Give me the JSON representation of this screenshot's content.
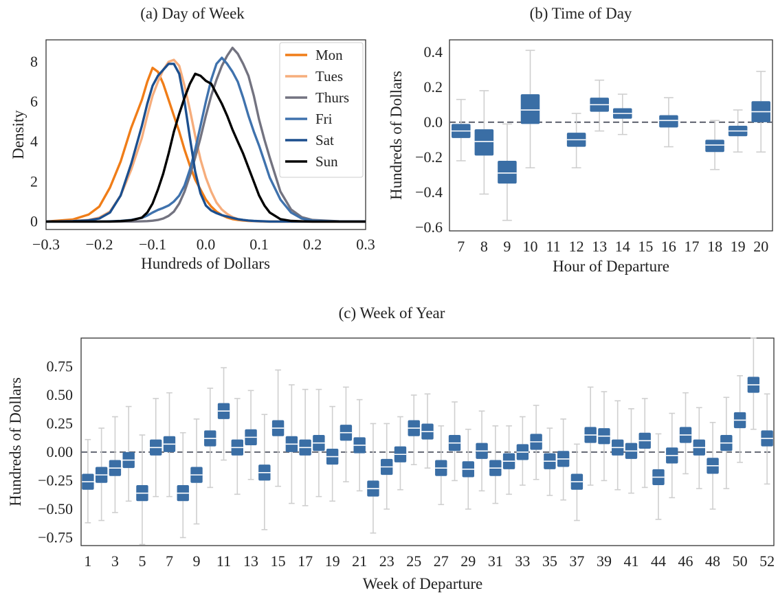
{
  "chart_data": [
    {
      "type": "line",
      "panel": "a",
      "title": "(a) Day of Week",
      "xlabel": "Hundreds of Dollars",
      "ylabel": "Density",
      "xlim": [
        -0.3,
        0.3
      ],
      "ylim": [
        -0.4,
        9.1
      ],
      "xticks": [
        "−0.3",
        "−0.2",
        "−0.1",
        "0.0",
        "0.1",
        "0.2",
        "0.3"
      ],
      "yticks": [
        "0",
        "2",
        "4",
        "6",
        "8"
      ],
      "grid": false,
      "legend": "top-right",
      "x": [
        -0.3,
        -0.25,
        -0.22,
        -0.2,
        -0.18,
        -0.16,
        -0.14,
        -0.12,
        -0.11,
        -0.1,
        -0.09,
        -0.08,
        -0.07,
        -0.06,
        -0.05,
        -0.04,
        -0.03,
        -0.02,
        -0.01,
        0.0,
        0.01,
        0.02,
        0.03,
        0.04,
        0.05,
        0.06,
        0.07,
        0.08,
        0.09,
        0.1,
        0.11,
        0.12,
        0.14,
        0.16,
        0.18,
        0.2,
        0.25,
        0.3
      ],
      "series": [
        {
          "name": "Mon",
          "color": "#f07d18",
          "values": [
            0.0,
            0.1,
            0.35,
            0.75,
            1.7,
            3.0,
            4.7,
            6.1,
            7.0,
            7.7,
            7.5,
            6.9,
            6.1,
            5.3,
            4.5,
            3.6,
            2.8,
            2.1,
            1.6,
            1.1,
            0.75,
            0.5,
            0.32,
            0.2,
            0.12,
            0.08,
            0.05,
            0.03,
            0.02,
            0.01,
            0.0,
            0.0,
            0.0,
            0.0,
            0.0,
            0.0,
            0.0,
            0.0
          ]
        },
        {
          "name": "Tues",
          "color": "#f6ad7c",
          "values": [
            0.0,
            0.03,
            0.08,
            0.2,
            0.5,
            1.3,
            2.6,
            4.2,
            5.3,
            6.3,
            7.0,
            7.6,
            8.0,
            8.1,
            7.8,
            6.8,
            5.6,
            4.3,
            3.1,
            2.2,
            1.5,
            0.95,
            0.6,
            0.38,
            0.22,
            0.12,
            0.07,
            0.04,
            0.02,
            0.01,
            0.0,
            0.0,
            0.0,
            0.0,
            0.0,
            0.0,
            0.0,
            0.0
          ]
        },
        {
          "name": "Thurs",
          "color": "#737380",
          "values": [
            0.0,
            0.0,
            0.0,
            0.0,
            0.0,
            0.0,
            0.0,
            0.01,
            0.02,
            0.04,
            0.08,
            0.15,
            0.28,
            0.5,
            0.9,
            1.5,
            2.3,
            3.2,
            4.2,
            5.3,
            6.3,
            7.1,
            7.8,
            8.3,
            8.7,
            8.4,
            7.9,
            7.3,
            6.3,
            5.1,
            4.1,
            3.2,
            1.5,
            0.6,
            0.22,
            0.08,
            0.01,
            0.0
          ]
        },
        {
          "name": "Fri",
          "color": "#3f72ad",
          "values": [
            0.0,
            0.0,
            0.0,
            0.0,
            0.01,
            0.03,
            0.08,
            0.18,
            0.3,
            0.45,
            0.58,
            0.68,
            0.8,
            1.0,
            1.3,
            1.8,
            2.6,
            3.6,
            4.8,
            6.0,
            7.1,
            7.9,
            8.2,
            7.9,
            7.5,
            7.0,
            6.2,
            5.3,
            4.5,
            3.8,
            3.0,
            2.2,
            1.1,
            0.45,
            0.15,
            0.05,
            0.0,
            0.0
          ]
        },
        {
          "name": "Sat",
          "color": "#1c4f8e",
          "values": [
            0.0,
            0.02,
            0.06,
            0.15,
            0.45,
            1.3,
            2.9,
            4.8,
            5.9,
            6.8,
            7.3,
            7.6,
            7.9,
            7.9,
            7.4,
            6.0,
            4.2,
            2.5,
            1.4,
            0.8,
            0.55,
            0.42,
            0.32,
            0.25,
            0.18,
            0.12,
            0.08,
            0.05,
            0.03,
            0.02,
            0.01,
            0.0,
            0.0,
            0.0,
            0.0,
            0.0,
            0.0,
            0.0
          ]
        },
        {
          "name": "Sun",
          "color": "#000000",
          "values": [
            0.0,
            0.0,
            0.0,
            0.0,
            0.0,
            0.02,
            0.06,
            0.2,
            0.45,
            0.9,
            1.6,
            2.4,
            3.4,
            4.5,
            5.4,
            6.2,
            6.9,
            7.4,
            7.3,
            7.05,
            6.9,
            6.4,
            5.9,
            5.3,
            4.6,
            4.0,
            3.4,
            2.7,
            2.0,
            1.3,
            0.8,
            0.45,
            0.12,
            0.03,
            0.01,
            0.0,
            0.0,
            0.0
          ]
        }
      ]
    },
    {
      "type": "box",
      "panel": "b",
      "title": "(b) Time of Day",
      "xlabel": "Hour of Departure",
      "ylabel": "Hundreds of Dollars",
      "ylim": [
        -0.62,
        0.47
      ],
      "yticks": [
        "0.4",
        "0.2",
        "0.0",
        "−0.2",
        "−0.4",
        "−0.6"
      ],
      "ytick_values": [
        0.4,
        0.2,
        0.0,
        -0.2,
        -0.4,
        -0.6
      ],
      "reference_line": 0.0,
      "color": "#3a6ea5",
      "categories": [
        "7",
        "8",
        "9",
        "10",
        "11",
        "12",
        "13",
        "14",
        "15",
        "16",
        "17",
        "18",
        "19",
        "20"
      ],
      "boxes": [
        {
          "cat": "7",
          "lo": -0.22,
          "q1": -0.09,
          "med": -0.05,
          "q3": -0.01,
          "hi": 0.13
        },
        {
          "cat": "8",
          "lo": -0.41,
          "q1": -0.19,
          "med": -0.11,
          "q3": -0.04,
          "hi": 0.18
        },
        {
          "cat": "9",
          "lo": -0.56,
          "q1": -0.35,
          "med": -0.29,
          "q3": -0.22,
          "hi": -0.01
        },
        {
          "cat": "10",
          "lo": -0.26,
          "q1": -0.01,
          "med": 0.07,
          "q3": 0.16,
          "hi": 0.41
        },
        {
          "cat": "12",
          "lo": -0.26,
          "q1": -0.14,
          "med": -0.1,
          "q3": -0.06,
          "hi": 0.05
        },
        {
          "cat": "13",
          "lo": -0.05,
          "q1": 0.06,
          "med": 0.1,
          "q3": 0.14,
          "hi": 0.24
        },
        {
          "cat": "14",
          "lo": -0.07,
          "q1": 0.02,
          "med": 0.05,
          "q3": 0.08,
          "hi": 0.16
        },
        {
          "cat": "16",
          "lo": -0.14,
          "q1": -0.03,
          "med": 0.01,
          "q3": 0.04,
          "hi": 0.14
        },
        {
          "cat": "18",
          "lo": -0.27,
          "q1": -0.17,
          "med": -0.13,
          "q3": -0.1,
          "hi": 0.01
        },
        {
          "cat": "19",
          "lo": -0.17,
          "q1": -0.08,
          "med": -0.05,
          "q3": -0.02,
          "hi": 0.07
        },
        {
          "cat": "20",
          "lo": -0.17,
          "q1": 0.0,
          "med": 0.06,
          "q3": 0.12,
          "hi": 0.29
        }
      ]
    },
    {
      "type": "box",
      "panel": "c",
      "title": "(c) Week of Year",
      "xlabel": "Week of Departure",
      "ylabel": "Hundreds of Dollars",
      "ylim": [
        -0.82,
        1.0
      ],
      "yticks": [
        "0.75",
        "0.50",
        "0.25",
        "0.00",
        "−0.25",
        "−0.50",
        "−0.75"
      ],
      "ytick_values": [
        0.75,
        0.5,
        0.25,
        0.0,
        -0.25,
        -0.5,
        -0.75
      ],
      "reference_line": 0.0,
      "color": "#3a6ea5",
      "categories": [
        "1",
        "2",
        "3",
        "4",
        "5",
        "6",
        "7",
        "8",
        "9",
        "10",
        "11",
        "12",
        "13",
        "14",
        "15",
        "16",
        "17",
        "18",
        "19",
        "20",
        "21",
        "22",
        "23",
        "24",
        "25",
        "26",
        "27",
        "28",
        "29",
        "30",
        "31",
        "32",
        "33",
        "34",
        "35",
        "36",
        "37",
        "38",
        "39",
        "40",
        "41",
        "42",
        "44",
        "45",
        "46",
        "47",
        "48",
        "49",
        "50",
        "51",
        "52"
      ],
      "tick_labels": [
        "1",
        "3",
        "5",
        "7",
        "9",
        "11",
        "13",
        "15",
        "17",
        "19",
        "21",
        "23",
        "25",
        "27",
        "29",
        "31",
        "33",
        "35",
        "37",
        "39",
        "41",
        "44",
        "46",
        "48",
        "50",
        "52"
      ],
      "medians": [
        -0.26,
        -0.2,
        -0.14,
        -0.07,
        -0.36,
        0.04,
        0.07,
        -0.36,
        -0.2,
        0.12,
        0.36,
        0.04,
        0.13,
        -0.18,
        0.21,
        0.07,
        0.04,
        0.08,
        -0.04,
        0.17,
        0.06,
        -0.32,
        -0.13,
        -0.02,
        0.21,
        0.18,
        -0.14,
        0.08,
        -0.15,
        0.01,
        -0.14,
        -0.08,
        0.0,
        0.09,
        -0.08,
        -0.06,
        -0.26,
        0.15,
        0.14,
        0.04,
        0.01,
        0.1,
        -0.22,
        -0.03,
        0.15,
        0.04,
        -0.12,
        0.08,
        0.28,
        0.59,
        0.12
      ],
      "iqr_half": 0.07,
      "whisker_low": [
        0.29,
        0.33,
        0.32,
        0.29,
        0.38,
        0.36,
        0.39,
        0.32,
        0.36,
        0.36,
        0.36,
        0.34,
        0.3,
        0.43,
        0.44,
        0.45,
        0.44,
        0.4,
        0.32,
        0.36,
        0.33,
        0.32,
        0.3,
        0.24,
        0.25,
        0.25,
        0.25,
        0.26,
        0.28,
        0.28,
        0.24,
        0.22,
        0.22,
        0.26,
        0.23,
        0.29,
        0.27,
        0.37,
        0.32,
        0.3,
        0.3,
        0.34,
        0.3,
        0.3,
        0.27,
        0.29,
        0.31,
        0.33,
        0.3,
        0.32,
        0.33
      ],
      "whisker_high": [
        0.3,
        0.34,
        0.38,
        0.4,
        0.44,
        0.36,
        0.38,
        0.46,
        0.42,
        0.37,
        0.31,
        0.36,
        0.34,
        0.44,
        0.44,
        0.45,
        0.44,
        0.4,
        0.37,
        0.33,
        0.33,
        0.5,
        0.31,
        0.26,
        0.22,
        0.26,
        0.3,
        0.29,
        0.28,
        0.28,
        0.3,
        0.24,
        0.24,
        0.25,
        0.22,
        0.28,
        0.26,
        0.35,
        0.32,
        0.34,
        0.3,
        0.3,
        0.31,
        0.3,
        0.3,
        0.28,
        0.31,
        0.33,
        0.32,
        0.34,
        0.32
      ]
    }
  ]
}
